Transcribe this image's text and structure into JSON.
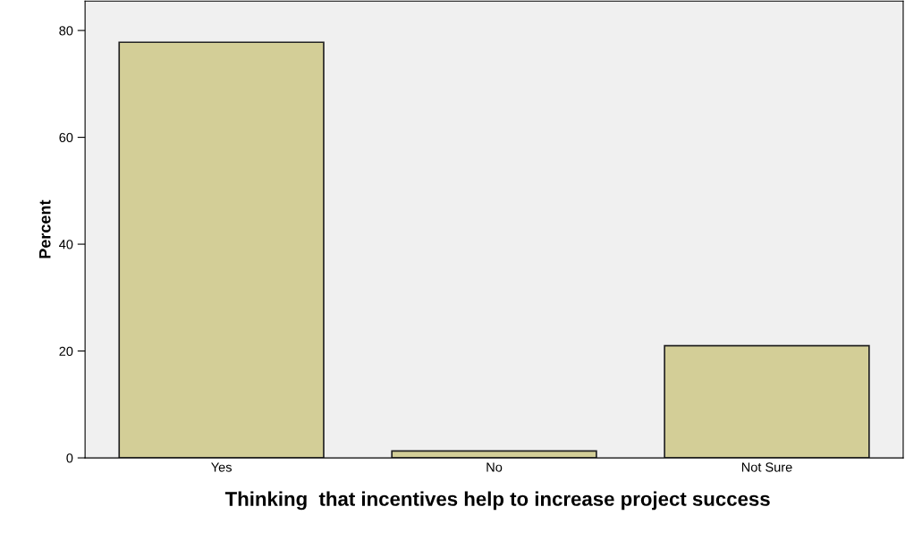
{
  "chart_data": {
    "type": "bar",
    "xlabel": "Thinking  that incentives help to increase project success",
    "ylabel": "Percent",
    "categories": [
      "Yes",
      "No",
      "Not Sure"
    ],
    "values": [
      77.8,
      1.3,
      21.0
    ],
    "color": "#d3ce97",
    "ylim": [
      0,
      85.5
    ],
    "yticks": [
      0,
      20,
      40,
      60,
      80
    ],
    "grid": false
  }
}
